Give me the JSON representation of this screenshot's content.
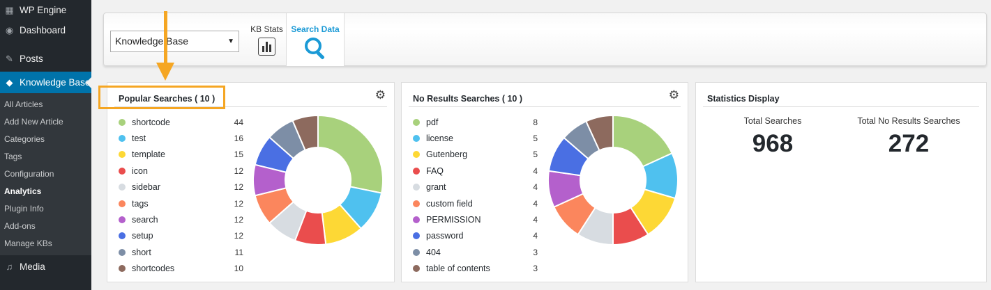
{
  "sidebar": {
    "top_items": [
      {
        "label": "WP Engine",
        "icon": "wpengine-icon"
      },
      {
        "label": "Dashboard",
        "icon": "dashboard-icon"
      },
      {
        "label": "Posts",
        "icon": "pin-icon"
      },
      {
        "label": "Knowledge Base",
        "icon": "graduation-cap-icon"
      }
    ],
    "sub_items": [
      "All Articles",
      "Add New Article",
      "Categories",
      "Tags",
      "Configuration",
      "Analytics",
      "Plugin Info",
      "Add-ons",
      "Manage KBs"
    ],
    "current_sub": "Analytics",
    "media": {
      "label": "Media",
      "icon": "media-icon"
    }
  },
  "toolbar": {
    "kb_select": "Knowledge Base",
    "kb_stats_label": "KB Stats",
    "search_data_label": "Search Data",
    "accent": "#1b9ad6"
  },
  "popular": {
    "title": "Popular Searches ( 10 )",
    "items": [
      {
        "term": "shortcode",
        "count": 44,
        "color": "#a8d17c"
      },
      {
        "term": "test",
        "count": 16,
        "color": "#4fc1ef"
      },
      {
        "term": "template",
        "count": 15,
        "color": "#fdd835"
      },
      {
        "term": "icon",
        "count": 12,
        "color": "#ea4d4d"
      },
      {
        "term": "sidebar",
        "count": 12,
        "color": "#d7dce1"
      },
      {
        "term": "tags",
        "count": 12,
        "color": "#fb865d"
      },
      {
        "term": "search",
        "count": 12,
        "color": "#b460cc"
      },
      {
        "term": "setup",
        "count": 12,
        "color": "#4a6fe3"
      },
      {
        "term": "short",
        "count": 11,
        "color": "#7d8ea6"
      },
      {
        "term": "shortcodes",
        "count": 10,
        "color": "#8d6a5e"
      }
    ]
  },
  "noresults": {
    "title": "No Results Searches ( 10 )",
    "items": [
      {
        "term": "pdf",
        "count": 8,
        "color": "#a8d17c"
      },
      {
        "term": "license",
        "count": 5,
        "color": "#4fc1ef"
      },
      {
        "term": "Gutenberg",
        "count": 5,
        "color": "#fdd835"
      },
      {
        "term": "FAQ",
        "count": 4,
        "color": "#ea4d4d"
      },
      {
        "term": "grant",
        "count": 4,
        "color": "#d7dce1"
      },
      {
        "term": "custom field",
        "count": 4,
        "color": "#fb865d"
      },
      {
        "term": "PERMISSION",
        "count": 4,
        "color": "#b460cc"
      },
      {
        "term": "password",
        "count": 4,
        "color": "#4a6fe3"
      },
      {
        "term": "404",
        "count": 3,
        "color": "#7d8ea6"
      },
      {
        "term": "table of contents",
        "count": 3,
        "color": "#8d6a5e"
      }
    ]
  },
  "stats": {
    "title": "Statistics Display",
    "total_label": "Total Searches",
    "total_value": "968",
    "noresults_label": "Total No Results Searches",
    "noresults_value": "272"
  },
  "annotation": {
    "color": "#f5a623"
  }
}
